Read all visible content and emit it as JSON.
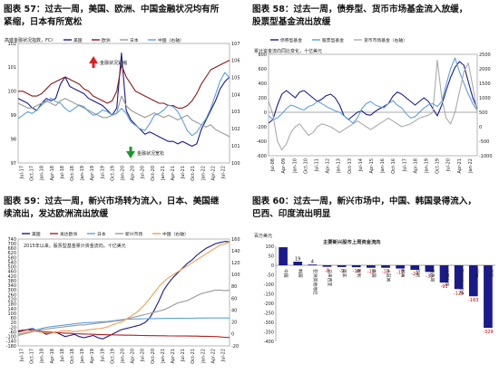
{
  "charts": [
    {
      "id": "fig57",
      "title_lines": [
        "图表 57：过去一周，美国、欧洲、中国金融状况均有所",
        "紧缩，日本有所宽松"
      ],
      "chart_data": {
        "type": "line",
        "ylabel": "高盛金融状况指数，FCI",
        "legend": [
          "美国",
          "欧洲",
          "日本",
          "中国（右轴）"
        ],
        "legend_placement": "top",
        "colors": [
          "#1a1a8c",
          "#8b1a1a",
          "#999999",
          "#5aa0e0"
        ],
        "ylim_left": [
          97,
          102
        ],
        "yticks_left": [
          "97",
          "98",
          "99",
          "100",
          "101",
          "102"
        ],
        "ylim_right": [
          100,
          107
        ],
        "yticks_right": [
          "100",
          "101",
          "102",
          "103",
          "104",
          "105",
          "106",
          "107"
        ],
        "xticks": [
          "Jul-17",
          "Oct-17",
          "Jan-18",
          "Apr-18",
          "Jul-18",
          "Oct-18",
          "Jan-19",
          "Apr-19",
          "Jul-19",
          "Oct-19",
          "Jan-20",
          "Apr-20",
          "Jul-20",
          "Oct-20",
          "Jan-21",
          "Apr-21",
          "Jul-21",
          "Oct-21",
          "Jan-22",
          "Apr-22",
          "Jul-22"
        ],
        "annotations": [
          "金融状况紧缩",
          "金融状况宽松"
        ],
        "series": [
          {
            "name": "美国",
            "axis": "left",
            "values": [
              99.7,
              99.6,
              99.5,
              99.3,
              99.2,
              99.5,
              99.7,
              99.6,
              99.7,
              100.3,
              100.6,
              100.2,
              100.1,
              100.0,
              99.9,
              99.7,
              99.6,
              99.5,
              99.4,
              99.2,
              99.0,
              99.3,
              101.6,
              99.2,
              98.8,
              98.6,
              98.4,
              98.2,
              98.3,
              98.2,
              98.1,
              98.0,
              97.9,
              97.9,
              97.8,
              97.9,
              97.8,
              97.7,
              97.8,
              98.4,
              98.8,
              99.2,
              99.6,
              100.1,
              100.4,
              100.6
            ]
          },
          {
            "name": "欧洲",
            "axis": "left",
            "values": [
              100.0,
              100.0,
              99.9,
              99.8,
              99.8,
              99.9,
              100.1,
              100.3,
              100.4,
              100.5,
              100.6,
              100.5,
              100.4,
              100.3,
              100.1,
              100.0,
              99.8,
              99.7,
              99.6,
              99.5,
              99.6,
              100.0,
              101.1,
              100.6,
              100.3,
              100.0,
              99.9,
              99.8,
              99.7,
              99.6,
              99.5,
              99.5,
              99.4,
              99.4,
              99.3,
              99.3,
              99.4,
              99.6,
              99.9,
              100.3,
              100.6,
              100.9,
              101.0,
              101.1,
              101.2,
              101.3
            ]
          },
          {
            "name": "日本",
            "axis": "left",
            "values": [
              99.5,
              99.4,
              99.3,
              99.3,
              99.4,
              99.5,
              99.6,
              99.5,
              99.4,
              99.6,
              99.7,
              99.6,
              99.5,
              99.4,
              99.3,
              99.2,
              99.1,
              99.0,
              98.9,
              98.9,
              99.0,
              99.1,
              99.8,
              99.4,
              99.2,
              99.1,
              99.0,
              98.9,
              99.0,
              99.1,
              99.0,
              98.9,
              99.0,
              98.9,
              98.8,
              98.9,
              99.0,
              98.8,
              98.7,
              98.6,
              98.5,
              98.6,
              98.4,
              98.3,
              98.2,
              98.1
            ]
          },
          {
            "name": "中国（右轴）",
            "axis": "right",
            "values": [
              102.6,
              102.8,
              103.0,
              102.9,
              103.1,
              103.4,
              103.6,
              103.8,
              103.6,
              103.5,
              103.2,
              103.0,
              103.2,
              103.4,
              103.3,
              103.0,
              102.8,
              102.9,
              103.1,
              103.0,
              102.8,
              102.9,
              103.2,
              102.9,
              102.4,
              102.2,
              102.0,
              101.9,
              102.3,
              102.8,
              102.9,
              103.1,
              103.4,
              103.3,
              103.0,
              102.5,
              101.9,
              101.6,
              101.8,
              102.2,
              102.6,
              103.2,
              104.0,
              104.8,
              105.3,
              105.0
            ]
          }
        ]
      }
    },
    {
      "id": "fig58",
      "title_lines": [
        "图表 58：过去一周，债券型、货币市场基金流入放缓，",
        "股票型基金流出放缓"
      ],
      "chart_data": {
        "type": "line",
        "ylabel": "累计资金流向同比变化，十亿美元",
        "legend": [
          "债券型基金",
          "股票型基金",
          "货币市场基金（右轴）"
        ],
        "legend_placement": "top",
        "colors": [
          "#1a1a8c",
          "#5aa0e0",
          "#aaaaaa"
        ],
        "ylim_left": [
          -600,
          800
        ],
        "yticks_left": [
          "-600",
          "-400",
          "-200",
          "0",
          "200",
          "400",
          "600",
          "800"
        ],
        "ylim_right": [
          -1000,
          2500
        ],
        "yticks_right": [
          "-1000",
          "-500",
          "0",
          "500",
          "1000",
          "1500",
          "2000",
          "2500"
        ],
        "xticks": [
          "Jul-08",
          "Apr-09",
          "Jan-10",
          "Oct-10",
          "Jul-11",
          "Apr-12",
          "Jan-13",
          "Oct-13",
          "Jul-14",
          "Apr-15",
          "Jan-16",
          "Oct-16",
          "Jul-17",
          "Apr-18",
          "Jan-19",
          "Oct-19",
          "Jul-20",
          "Apr-21",
          "Jan-22"
        ],
        "series": [
          {
            "name": "债券型基金",
            "axis": "left",
            "values": [
              -150,
              -100,
              100,
              250,
              300,
              250,
              200,
              280,
              300,
              250,
              200,
              150,
              180,
              230,
              250,
              200,
              100,
              -50,
              -100,
              -50,
              0,
              20,
              -30,
              -40,
              10,
              50,
              80,
              120,
              220,
              280,
              250,
              200,
              150,
              100,
              150,
              200,
              150,
              50,
              -50,
              100,
              300,
              480,
              620,
              700,
              650,
              420,
              200,
              50
            ]
          },
          {
            "name": "股票型基金",
            "axis": "left",
            "values": [
              -50,
              -100,
              -80,
              -20,
              50,
              100,
              80,
              50,
              30,
              80,
              100,
              150,
              120,
              80,
              50,
              20,
              0,
              -50,
              -100,
              -150,
              -80,
              50,
              120,
              150,
              100,
              80,
              60,
              120,
              160,
              100,
              60,
              -20,
              -80,
              -60,
              0,
              60,
              100,
              120,
              80,
              150,
              380,
              600,
              750,
              560,
              400,
              250,
              120,
              20
            ]
          },
          {
            "name": "货币市场基金（右轴）",
            "axis": "right",
            "values": [
              900,
              400,
              -500,
              -800,
              -600,
              -200,
              0,
              100,
              -100,
              -300,
              -200,
              0,
              100,
              50,
              0,
              -100,
              -200,
              -100,
              0,
              100,
              200,
              100,
              0,
              -100,
              0,
              100,
              200,
              300,
              200,
              100,
              0,
              50,
              100,
              200,
              300,
              350,
              400,
              500,
              2300,
              1000,
              300,
              100,
              500,
              1200,
              1900,
              2200,
              1400,
              500
            ]
          }
        ]
      }
    },
    {
      "id": "fig59",
      "title_lines": [
        "图表 59：过去一周，新兴市场转为流入，日本、美国继",
        "续流出，发达欧洲流出放缓"
      ],
      "chart_data": {
        "type": "line",
        "ylabel": "2015年以来，股票型基金累计资金流向，十亿美元",
        "legend": [
          "美国",
          "发达欧洲",
          "日本",
          "新兴市场",
          "中国（右轴）"
        ],
        "legend_placement": "top",
        "colors": [
          "#1a1a8c",
          "#b02020",
          "#5aa0e0",
          "#999999",
          "#f0a050"
        ],
        "ylim_left": [
          -180,
          740
        ],
        "yticks_left": [
          "-180",
          "-140",
          "-100",
          "-60",
          "-20",
          "20",
          "60",
          "100",
          "140",
          "180",
          "220",
          "260",
          "300",
          "340",
          "380",
          "420",
          "460",
          "500",
          "540",
          "580",
          "620",
          "660",
          "700",
          "740"
        ],
        "ylim_right": [
          -20,
          160
        ],
        "yticks_right": [
          "-20",
          "0",
          "20",
          "40",
          "60",
          "80",
          "100",
          "120",
          "140",
          "160"
        ],
        "xticks": [
          "Jul-17",
          "Oct-17",
          "Jan-18",
          "Apr-18",
          "Jul-18",
          "Oct-18",
          "Jan-19",
          "Apr-19",
          "Jul-19",
          "Oct-19",
          "Jan-20",
          "Apr-20",
          "Jul-20",
          "Oct-20",
          "Jan-21",
          "Apr-21",
          "Jul-21",
          "Oct-21",
          "Jan-22",
          "Apr-22",
          "Jul-22"
        ],
        "series": [
          {
            "name": "美国",
            "axis": "left",
            "values": [
              -60,
              -50,
              -40,
              -30,
              -50,
              -60,
              -80,
              -70,
              -60,
              -80,
              -100,
              -90,
              -80,
              -100,
              -110,
              -100,
              -90,
              -110,
              -120,
              -100,
              -80,
              -60,
              -40,
              -30,
              -20,
              -10,
              0,
              20,
              60,
              130,
              210,
              300,
              360,
              410,
              450,
              490,
              530,
              560,
              600,
              630,
              660,
              680,
              700,
              710,
              720,
              715
            ]
          },
          {
            "name": "发达欧洲",
            "axis": "left",
            "values": [
              -50,
              -45,
              -40,
              -45,
              -50,
              -55,
              -60,
              -62,
              -65,
              -68,
              -70,
              -72,
              -75,
              -76,
              -78,
              -79,
              -80,
              -82,
              -83,
              -84,
              -85,
              -86,
              -87,
              -88,
              -88,
              -89,
              -90,
              -91,
              -92,
              -92,
              -93,
              -93,
              -94,
              -94,
              -95,
              -95,
              -95,
              -96,
              -96,
              -97,
              -97,
              -98,
              -100,
              -103,
              -106,
              -108
            ]
          },
          {
            "name": "日本",
            "axis": "left",
            "values": [
              -80,
              -70,
              -60,
              -50,
              -40,
              -30,
              -20,
              -15,
              -10,
              -5,
              0,
              5,
              10,
              15,
              18,
              20,
              22,
              25,
              28,
              30,
              35,
              40,
              45,
              50,
              50,
              52,
              52,
              54,
              55,
              55,
              56,
              56,
              57,
              57,
              57,
              58,
              58,
              58,
              59,
              59,
              60,
              60,
              60,
              60,
              60,
              60
            ]
          },
          {
            "name": "新兴市场",
            "axis": "left",
            "values": [
              -90,
              -80,
              -70,
              -60,
              -50,
              -40,
              -35,
              -30,
              -25,
              -20,
              -15,
              -10,
              -5,
              0,
              0,
              5,
              10,
              15,
              20,
              25,
              30,
              35,
              40,
              50,
              60,
              70,
              80,
              90,
              100,
              110,
              120,
              130,
              150,
              170,
              190,
              200,
              210,
              230,
              250,
              270,
              280,
              290,
              300,
              300,
              295,
              300
            ]
          },
          {
            "name": "中国（右轴）",
            "axis": "right",
            "values": [
              0,
              2,
              4,
              5,
              4,
              3,
              2,
              1,
              3,
              5,
              6,
              5,
              4,
              5,
              6,
              7,
              8,
              9,
              10,
              12,
              15,
              18,
              20,
              25,
              30,
              35,
              42,
              50,
              60,
              70,
              80,
              88,
              95,
              100,
              105,
              110,
              115,
              120,
              125,
              130,
              135,
              140,
              145,
              150,
              152,
              155
            ]
          }
        ]
      }
    },
    {
      "id": "fig60",
      "title_lines": [
        "图表 60：过去一周，新兴市场中，中国、韩国录得流入，",
        "巴西、印度流出明显"
      ],
      "chart_data": {
        "type": "bar",
        "title": "主要新兴股市上周资金流向",
        "ylabel": "百万美元",
        "ylim": [
          -400,
          100
        ],
        "yticks": [
          "-400",
          "-350",
          "-300",
          "-250",
          "-200",
          "-150",
          "-100",
          "-50",
          "0",
          "50",
          "100"
        ],
        "categories": [
          "中国",
          "韩国",
          "亚洲其他地区",
          "马来西亚",
          "南非",
          "智利",
          "泰国",
          "土耳其",
          "越南",
          "印尼",
          "墨西哥",
          "中国台湾",
          "欧洲新兴市场",
          "印度",
          "巴西"
        ],
        "values": [
          95,
          19,
          4,
          -8,
          -9,
          -10,
          -13,
          -13,
          -17,
          -24,
          -35,
          -91,
          -125,
          -163,
          -329
        ],
        "labels": [
          "",
          "19",
          "4",
          "-8",
          "-9",
          "-10",
          "-13",
          "-13",
          "-17",
          "-24",
          "-35",
          "-91",
          "-125",
          "-163",
          "-329"
        ],
        "bar_color": "#1a1a8c",
        "positive_label_color": "#111111",
        "negative_label_color": "#c00000"
      }
    }
  ]
}
